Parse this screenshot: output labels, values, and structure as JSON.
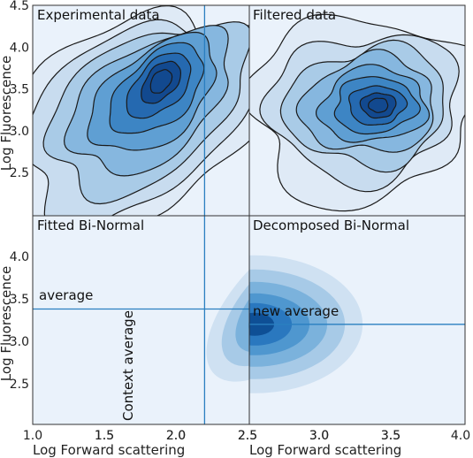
{
  "chart_data": {
    "type": "contour",
    "x_ticks": [
      "1.0",
      "1.5",
      "2.0",
      "2.5",
      "3.0",
      "3.5",
      "4.0"
    ],
    "y_ticks": [
      "2.5",
      "3.0",
      "3.5",
      "4.0",
      "4.5"
    ],
    "xlim": [
      1.0,
      4.0
    ],
    "ylim": [
      2.0,
      4.5
    ],
    "grid": false,
    "colors": {
      "fill_levels": [
        "#dfeaf6",
        "#c8dcef",
        "#a9cbe7",
        "#86b7df",
        "#5f9fd3",
        "#3d85c4",
        "#2569b0",
        "#12498f"
      ],
      "line": "#1a1a1a",
      "ref_line": "#2a7fc0",
      "panel_bg": "#eaf2fb",
      "frame": "#333333"
    },
    "panels": [
      {
        "title": "Experimental data",
        "xlabel": "",
        "ylabel": "Log Fluorescence",
        "x_tick_labels": [],
        "y_tick_labels": [
          "2.5",
          "3.0",
          "3.5",
          "4.0",
          "4.5"
        ]
      },
      {
        "title": "Filtered data",
        "xlabel": "",
        "ylabel": "",
        "x_tick_labels": [],
        "y_tick_labels": []
      },
      {
        "title": "Fitted Bi-Normal",
        "xlabel": "Log Forward scattering",
        "ylabel": "Log Fluorescence",
        "x_tick_labels": [
          "1.0",
          "1.5",
          "2.0",
          "2.5",
          "3.0",
          "3.5"
        ],
        "y_tick_labels": [
          "2.5",
          "3.0",
          "3.5",
          "4.0"
        ],
        "annotations": [
          "average",
          "Context average"
        ]
      },
      {
        "title": "Decomposed Bi-Normal",
        "xlabel": "Log Forward scattering",
        "ylabel": "",
        "x_tick_labels": [
          "1.5",
          "2.0",
          "2.5",
          "3.0",
          "3.5",
          "4.0"
        ],
        "y_tick_labels": [],
        "annotations": [
          "new average"
        ]
      }
    ],
    "reference_lines": {
      "vertical_x": 2.2,
      "horizontal_y_fitted": 3.38,
      "horizontal_y_decomposed": 3.2
    }
  }
}
